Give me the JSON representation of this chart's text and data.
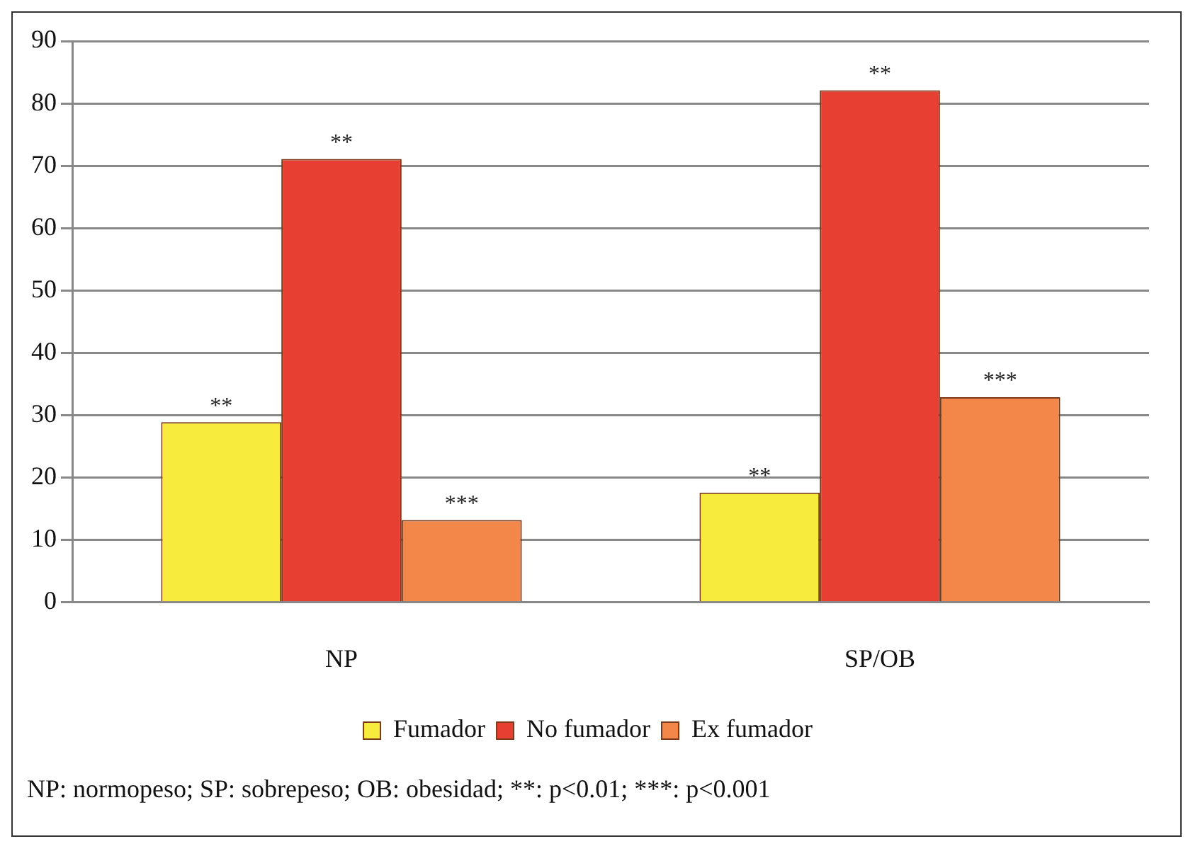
{
  "chart_data": {
    "type": "bar",
    "categories": [
      "NP",
      "SP/OB"
    ],
    "series": [
      {
        "name": "Fumador",
        "color": "#f7ec3e",
        "values": [
          28.9,
          17.6
        ],
        "value_labels": [
          "**",
          "**"
        ]
      },
      {
        "name": "No fumador",
        "color": "#e83f33",
        "values": [
          71.1,
          82.1
        ],
        "value_labels": [
          "**",
          "**"
        ]
      },
      {
        "name": "Ex fumador",
        "color": "#f3874a",
        "values": [
          13.2,
          32.9
        ],
        "value_labels": [
          "***",
          "***"
        ]
      }
    ],
    "ylim": [
      0,
      90
    ],
    "yticks": [
      0,
      10,
      20,
      30,
      40,
      50,
      60,
      70,
      80,
      90
    ],
    "grid": "y",
    "legend": "bottom",
    "annotations": [
      "NP: normopeso; SP: sobrepeso; OB: obesidad; **: p<0.01; ***: p<0.001"
    ]
  }
}
